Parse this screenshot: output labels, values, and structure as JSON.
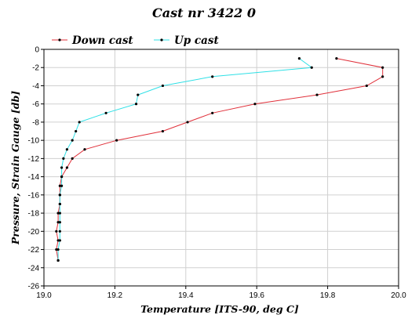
{
  "chart_data": {
    "type": "line",
    "title": "Cast nr 3422 0",
    "xlabel": "Temperature [ITS-90, deg C]",
    "ylabel": "Pressure, Strain Gauge [db]",
    "xlim": [
      19.0,
      20.0
    ],
    "ylim": [
      -26,
      0
    ],
    "x_ticks": [
      "19.0",
      "19.2",
      "19.4",
      "19.6",
      "19.8",
      "20.0"
    ],
    "y_ticks": [
      "0",
      "-2",
      "-4",
      "-6",
      "-8",
      "-10",
      "-12",
      "-14",
      "-16",
      "-18",
      "-20",
      "-22",
      "-24",
      "-26"
    ],
    "grid": true,
    "legend_position": "top",
    "series": [
      {
        "name": "Down cast",
        "color": "#e0303a",
        "points": [
          [
            19.825,
            -1.0
          ],
          [
            19.955,
            -2.0
          ],
          [
            19.955,
            -3.0
          ],
          [
            19.91,
            -4.0
          ],
          [
            19.77,
            -5.0
          ],
          [
            19.595,
            -6.0
          ],
          [
            19.475,
            -7.0
          ],
          [
            19.405,
            -8.0
          ],
          [
            19.335,
            -9.0
          ],
          [
            19.205,
            -10.0
          ],
          [
            19.115,
            -11.0
          ],
          [
            19.08,
            -12.0
          ],
          [
            19.065,
            -13.0
          ],
          [
            19.05,
            -14.0
          ],
          [
            19.045,
            -15.0
          ],
          [
            19.045,
            -16.0
          ],
          [
            19.045,
            -17.0
          ],
          [
            19.04,
            -18.0
          ],
          [
            19.04,
            -19.0
          ],
          [
            19.035,
            -20.0
          ],
          [
            19.04,
            -21.0
          ],
          [
            19.035,
            -22.0
          ],
          [
            19.04,
            -23.2
          ]
        ]
      },
      {
        "name": "Up cast",
        "color": "#2ee0e6",
        "points": [
          [
            19.72,
            -1.0
          ],
          [
            19.755,
            -2.0
          ],
          [
            19.475,
            -3.0
          ],
          [
            19.335,
            -4.0
          ],
          [
            19.265,
            -5.0
          ],
          [
            19.26,
            -6.0
          ],
          [
            19.175,
            -7.0
          ],
          [
            19.1,
            -8.0
          ],
          [
            19.09,
            -9.0
          ],
          [
            19.08,
            -10.0
          ],
          [
            19.065,
            -11.0
          ],
          [
            19.055,
            -12.0
          ],
          [
            19.05,
            -13.0
          ],
          [
            19.05,
            -14.0
          ],
          [
            19.05,
            -15.0
          ],
          [
            19.045,
            -16.0
          ],
          [
            19.045,
            -17.0
          ],
          [
            19.045,
            -18.0
          ],
          [
            19.045,
            -19.0
          ],
          [
            19.045,
            -20.0
          ],
          [
            19.045,
            -21.0
          ],
          [
            19.04,
            -22.0
          ],
          [
            19.04,
            -23.2
          ]
        ]
      }
    ]
  }
}
